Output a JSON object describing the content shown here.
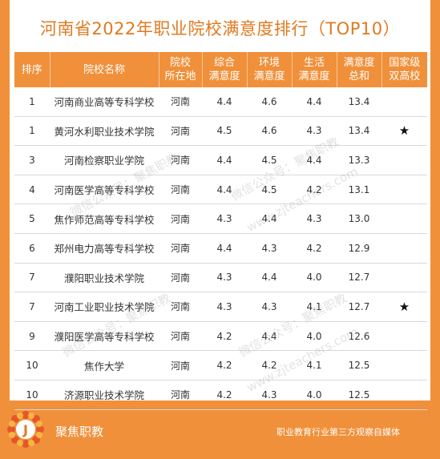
{
  "title": "河南省2022年职业院校满意度排行（TOP10）",
  "colors": {
    "accent": "#f0903a",
    "title": "#e07a1f",
    "background": "#ffffff"
  },
  "headers": [
    [
      "排序"
    ],
    [
      "院校名称"
    ],
    [
      "院校",
      "所在地"
    ],
    [
      "综合",
      "满意度"
    ],
    [
      "环境",
      "满意度"
    ],
    [
      "生活",
      "满意度"
    ],
    [
      "满意度",
      "总和"
    ],
    [
      "国家级",
      "双高校"
    ]
  ],
  "rows": [
    {
      "rank": "1",
      "name": "河南商业高等专科学校",
      "region": "河南",
      "overall": "4.4",
      "environment": "4.6",
      "life": "4.4",
      "total": "13.4",
      "double_high": ""
    },
    {
      "rank": "1",
      "name": "黄河水利职业技术学院",
      "region": "河南",
      "overall": "4.5",
      "environment": "4.6",
      "life": "4.3",
      "total": "13.4",
      "double_high": "★"
    },
    {
      "rank": "3",
      "name": "河南检察职业学院",
      "region": "河南",
      "overall": "4.4",
      "environment": "4.5",
      "life": "4.4",
      "total": "13.3",
      "double_high": ""
    },
    {
      "rank": "4",
      "name": "河南医学高等专科学校",
      "region": "河南",
      "overall": "4.4",
      "environment": "4.5",
      "life": "4.2",
      "total": "13.1",
      "double_high": ""
    },
    {
      "rank": "5",
      "name": "焦作师范高等专科学校",
      "region": "河南",
      "overall": "4.3",
      "environment": "4.4",
      "life": "4.3",
      "total": "13.0",
      "double_high": ""
    },
    {
      "rank": "6",
      "name": "郑州电力高等专科学校",
      "region": "河南",
      "overall": "4.4",
      "environment": "4.3",
      "life": "4.2",
      "total": "12.9",
      "double_high": ""
    },
    {
      "rank": "7",
      "name": "濮阳职业技术学院",
      "region": "河南",
      "overall": "4.3",
      "environment": "4.4",
      "life": "4.0",
      "total": "12.7",
      "double_high": ""
    },
    {
      "rank": "7",
      "name": "河南工业职业技术学院",
      "region": "河南",
      "overall": "4.3",
      "environment": "4.3",
      "life": "4.1",
      "total": "12.7",
      "double_high": "★"
    },
    {
      "rank": "9",
      "name": "濮阳医学高等专科学校",
      "region": "河南",
      "overall": "4.2",
      "environment": "4.4",
      "life": "4.0",
      "total": "12.6",
      "double_high": ""
    },
    {
      "rank": "10",
      "name": "焦作大学",
      "region": "河南",
      "overall": "4.2",
      "environment": "4.2",
      "life": "4.1",
      "total": "12.5",
      "double_high": ""
    },
    {
      "rank": "10",
      "name": "济源职业技术学院",
      "region": "河南",
      "overall": "4.2",
      "environment": "4.3",
      "life": "4.0",
      "total": "12.5",
      "double_high": ""
    }
  ],
  "footer": {
    "logo_letter": "J",
    "brand": "聚焦职教",
    "tagline": "职业教育行业第三方观察自媒体"
  },
  "watermark": {
    "text_a": "微信公众号：聚焦职教",
    "text_b": "www.zjteachers.com"
  }
}
